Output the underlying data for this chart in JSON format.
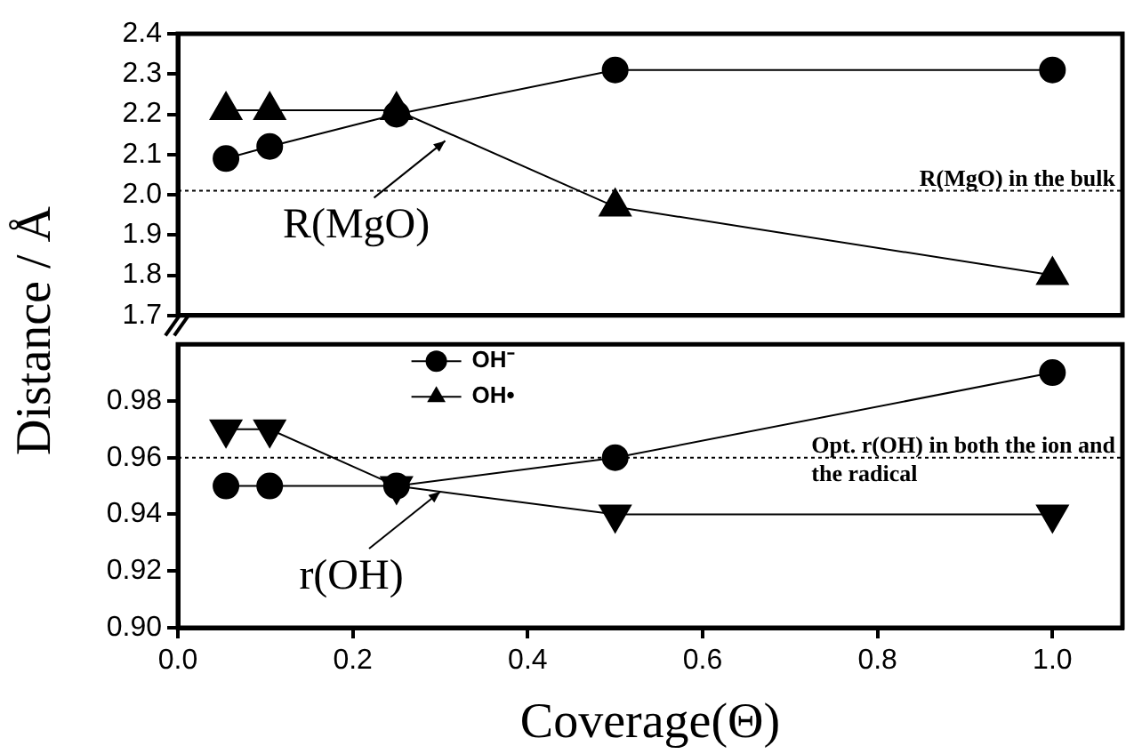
{
  "chart_data": [
    {
      "type": "line",
      "ylabel": "Distance / Å",
      "x": [
        0.055,
        0.105,
        0.25,
        0.5,
        1.0
      ],
      "xlim": [
        0,
        1.08
      ],
      "ylim": [
        1.7,
        2.4
      ],
      "yticks": [
        1.7,
        1.8,
        1.9,
        {
          "value": 2,
          "label": "2.0"
        },
        2.1,
        2.2,
        2.3,
        2.4
      ],
      "tick_labels": "y",
      "series": [
        {
          "color": "#000000",
          "marker": "circle",
          "values": [
            2.09,
            2.12,
            2.2,
            2.31,
            2.31
          ]
        },
        {
          "color": "#000000",
          "marker": "triangle",
          "values": [
            2.21,
            2.21,
            2.21,
            1.97,
            1.8
          ]
        }
      ],
      "ref_lines": [
        {
          "axis": "y",
          "value": 2.01,
          "label": "R(MgO) in the bulk",
          "line_style": "dotted"
        }
      ],
      "annotations": [
        "R(MgO)"
      ]
    },
    {
      "type": "line",
      "xlabel": "Coverage(Θ)",
      "x": [
        0.055,
        0.105,
        0.25,
        0.5,
        1.0
      ],
      "xlim": [
        0,
        1.08
      ],
      "xticks": [
        {
          "value": 0,
          "label": "0.0"
        },
        0.2,
        0.4,
        0.6,
        0.8,
        {
          "value": 1,
          "label": "1.0"
        }
      ],
      "ylim": [
        0.9,
        1.0
      ],
      "yticks": [
        {
          "value": 0.9,
          "label": "0.90"
        },
        0.92,
        0.94,
        0.96,
        0.98
      ],
      "legend": "top left",
      "series": [
        {
          "name": "OH⁻",
          "color": "#000000",
          "marker": "circle",
          "values": [
            0.95,
            0.95,
            0.95,
            0.96,
            0.99
          ]
        },
        {
          "name": "OH•",
          "color": "#000000",
          "marker": "triangle",
          "values": [
            0.97,
            0.97,
            0.95,
            0.94,
            0.94
          ]
        }
      ],
      "ref_lines": [
        {
          "axis": "y",
          "value": 0.96,
          "label": "Opt. r(OH) in both the ion and the radical",
          "line_style": "dotted"
        }
      ],
      "annotations": [
        {
          "text": "r(OH)",
          "x": 0.3,
          "y": 0.948
        }
      ]
    }
  ]
}
